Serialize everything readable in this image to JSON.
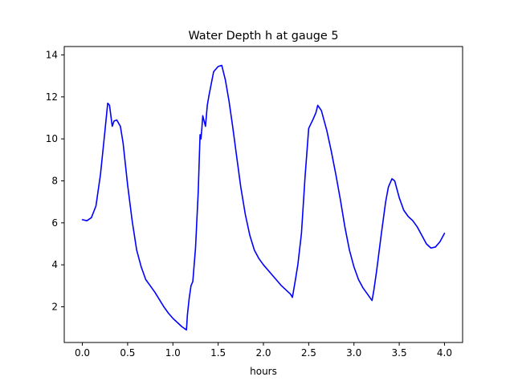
{
  "chart_data": {
    "type": "line",
    "title": "Water Depth h at gauge 5",
    "xlabel": "hours",
    "ylabel": "",
    "xlim": [
      -0.2,
      4.2
    ],
    "ylim": [
      0.3,
      14.4
    ],
    "grid": false,
    "x_ticks": [
      0.0,
      0.5,
      1.0,
      1.5,
      2.0,
      2.5,
      3.0,
      3.5,
      4.0
    ],
    "x_tick_labels": [
      "0.0",
      "0.5",
      "1.0",
      "1.5",
      "2.0",
      "2.5",
      "3.0",
      "3.5",
      "4.0"
    ],
    "y_ticks": [
      2,
      4,
      6,
      8,
      10,
      12,
      14
    ],
    "y_tick_labels": [
      "2",
      "4",
      "6",
      "8",
      "10",
      "12",
      "14"
    ],
    "series": [
      {
        "color": "#0000ff",
        "x": [
          0.0,
          0.05,
          0.1,
          0.15,
          0.2,
          0.25,
          0.28,
          0.3,
          0.33,
          0.35,
          0.38,
          0.42,
          0.45,
          0.5,
          0.55,
          0.6,
          0.65,
          0.7,
          0.75,
          0.8,
          0.85,
          0.9,
          0.95,
          1.0,
          1.05,
          1.1,
          1.15,
          1.16,
          1.18,
          1.2,
          1.22,
          1.25,
          1.28,
          1.3,
          1.31,
          1.32,
          1.33,
          1.36,
          1.38,
          1.4,
          1.45,
          1.5,
          1.54,
          1.58,
          1.62,
          1.66,
          1.7,
          1.75,
          1.8,
          1.85,
          1.9,
          1.95,
          2.0,
          2.1,
          2.2,
          2.3,
          2.32,
          2.35,
          2.38,
          2.42,
          2.46,
          2.5,
          2.55,
          2.58,
          2.6,
          2.64,
          2.7,
          2.75,
          2.8,
          2.85,
          2.9,
          2.95,
          3.0,
          3.05,
          3.1,
          3.15,
          3.2,
          3.22,
          3.25,
          3.3,
          3.35,
          3.38,
          3.42,
          3.45,
          3.5,
          3.55,
          3.6,
          3.65,
          3.7,
          3.75,
          3.8,
          3.85,
          3.9,
          3.95,
          4.0
        ],
        "y": [
          6.15,
          6.1,
          6.25,
          6.8,
          8.3,
          10.4,
          11.7,
          11.6,
          10.6,
          10.85,
          10.9,
          10.6,
          9.8,
          7.8,
          6.1,
          4.7,
          3.9,
          3.3,
          3.0,
          2.7,
          2.35,
          2.0,
          1.7,
          1.45,
          1.25,
          1.05,
          0.9,
          1.6,
          2.4,
          3.0,
          3.2,
          4.8,
          7.5,
          10.2,
          10.0,
          10.5,
          11.1,
          10.6,
          11.6,
          12.1,
          13.2,
          13.45,
          13.5,
          12.8,
          11.8,
          10.6,
          9.3,
          7.7,
          6.4,
          5.4,
          4.7,
          4.3,
          4.0,
          3.5,
          3.0,
          2.6,
          2.45,
          3.2,
          4.0,
          5.5,
          8.2,
          10.5,
          10.95,
          11.25,
          11.6,
          11.35,
          10.4,
          9.4,
          8.3,
          7.1,
          5.8,
          4.7,
          3.9,
          3.3,
          2.9,
          2.6,
          2.3,
          2.8,
          3.7,
          5.4,
          7.0,
          7.7,
          8.1,
          8.0,
          7.2,
          6.6,
          6.3,
          6.1,
          5.8,
          5.4,
          5.0,
          4.8,
          4.85,
          5.1,
          5.5
        ]
      }
    ]
  }
}
